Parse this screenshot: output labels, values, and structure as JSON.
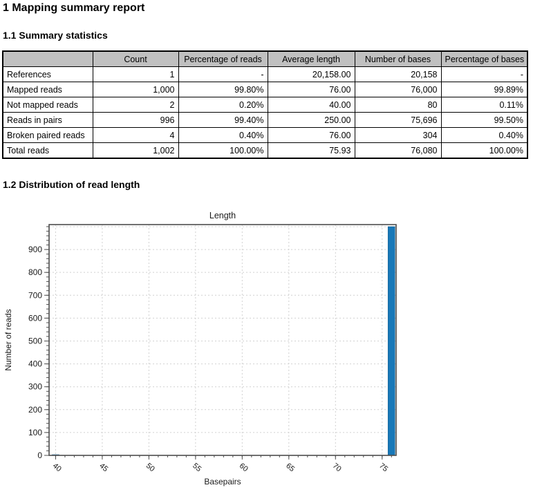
{
  "report": {
    "title": "1 Mapping summary report"
  },
  "sections": {
    "summary": {
      "title": "1.1 Summary statistics"
    },
    "distribution": {
      "title": "1.2 Distribution of read length"
    }
  },
  "table": {
    "columns": [
      "",
      "Count",
      "Percentage of reads",
      "Average length",
      "Number of bases",
      "Percentage of bases"
    ],
    "rows": [
      [
        "References",
        "1",
        "-",
        "20,158.00",
        "20,158",
        "-"
      ],
      [
        "Mapped reads",
        "1,000",
        "99.80%",
        "76.00",
        "76,000",
        "99.89%"
      ],
      [
        "Not mapped reads",
        "2",
        "0.20%",
        "40.00",
        "80",
        "0.11%"
      ],
      [
        "Reads in pairs",
        "996",
        "99.40%",
        "250.00",
        "75,696",
        "99.50%"
      ],
      [
        "Broken paired reads",
        "4",
        "0.40%",
        "76.00",
        "304",
        "0.40%"
      ],
      [
        "Total reads",
        "1,002",
        "100.00%",
        "75.93",
        "76,080",
        "100.00%"
      ]
    ],
    "header_bg": "#c0c0c0"
  },
  "chart_data": {
    "type": "bar",
    "title": "Length",
    "xlabel": "Basepairs",
    "ylabel": "Number of reads",
    "bars": [
      {
        "x": 40,
        "count": 2
      },
      {
        "x": 76,
        "count": 1000
      }
    ],
    "xlim": [
      39.3,
      76.5
    ],
    "ylim": [
      0,
      1009
    ],
    "x_major_ticks": [
      40,
      45,
      50,
      55,
      60,
      65,
      70,
      75
    ],
    "y_major_ticks": [
      0,
      100,
      200,
      300,
      400,
      500,
      600,
      700,
      800,
      900
    ],
    "x_minor_step": 1,
    "y_minor_step": 20,
    "grid": true,
    "legend": "none",
    "bar_color": "#1878b8",
    "bar_edge_color": "#14608f",
    "frame_color": "#4d4d4d",
    "grid_color": "#d0d0d0",
    "text_color": "#1a1a1a"
  }
}
